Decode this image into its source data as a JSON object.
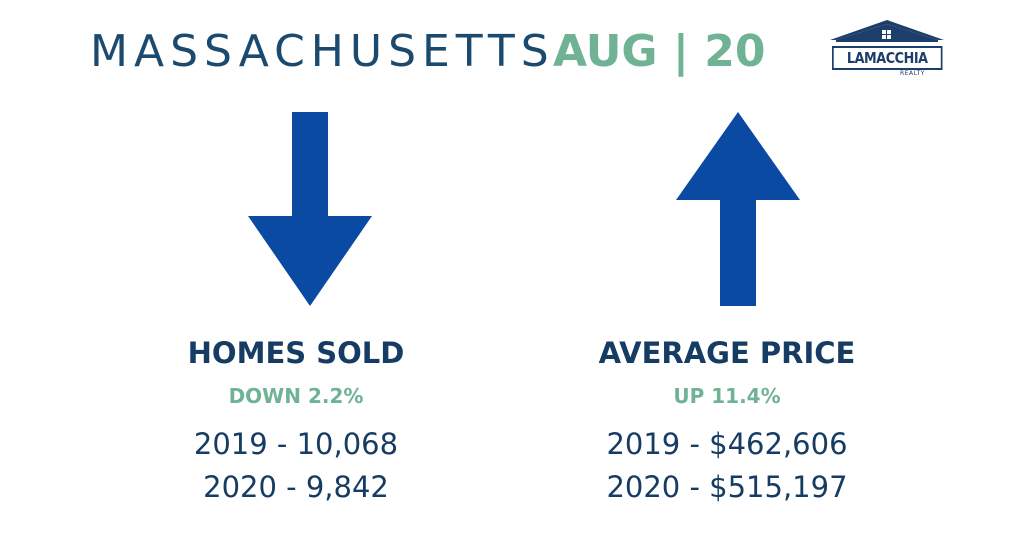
{
  "header": {
    "state": "MASSACHUSETTS",
    "date": "AUG | 20"
  },
  "logo": {
    "name": "LAMACCHIA",
    "subtitle": "REALTY"
  },
  "colors": {
    "navy": "#163c63",
    "green": "#6fb394",
    "arrow_blue": "#0b4aa2"
  },
  "homes_sold": {
    "heading": "HOMES SOLD",
    "change": "DOWN 2.2%",
    "direction": "down",
    "line_2019": "2019 - 10,068",
    "line_2020": "2020 - 9,842"
  },
  "average_price": {
    "heading": "AVERAGE PRICE",
    "change": "UP 11.4%",
    "direction": "up",
    "line_2019": "2019 - $462,606",
    "line_2020": "2020 - $515,197"
  }
}
